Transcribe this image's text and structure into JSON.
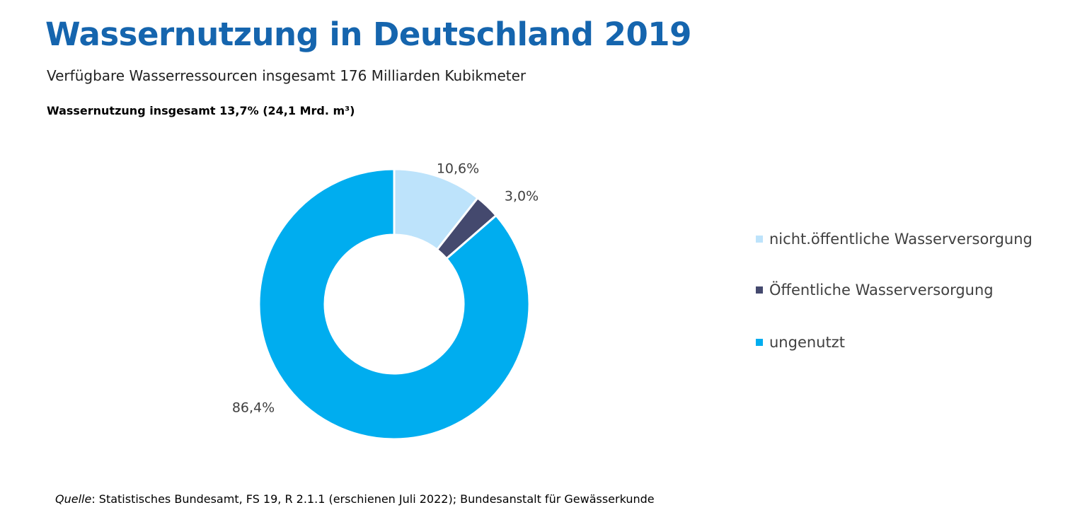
{
  "header": {
    "title": "Wassernutzung in Deutschland 2019",
    "subtitle": "Verfügbare Wasserressourcen insgesamt 176 Milliarden Kubikmeter",
    "subhead": "Wassernutzung insgesamt 13,7% (24,1 Mrd. m³)"
  },
  "chart_data": {
    "type": "pie",
    "donut": true,
    "categories": [
      "nicht.öffentliche Wasserversorgung",
      "Öffentliche Wasserversorgung",
      "ungenutzt"
    ],
    "values": [
      10.6,
      3.0,
      86.4
    ],
    "data_labels": [
      "10,6%",
      "3,0%",
      "86,4%"
    ],
    "colors": [
      "#bde3fb",
      "#44496e",
      "#00adef"
    ],
    "legend_position": "right"
  },
  "legend": {
    "items": [
      {
        "label": "nicht.öffentliche Wasserversorgung",
        "color": "#bde3fb"
      },
      {
        "label": "Öffentliche Wasserversorgung",
        "color": "#44496e"
      },
      {
        "label": "ungenutzt",
        "color": "#00adef"
      }
    ]
  },
  "footer": {
    "source_label": "Quelle",
    "source_text": ": Statistisches Bundesamt, FS 19, R 2.1.1 (erschienen Juli 2022); Bundesanstalt für Gewässerkunde"
  }
}
